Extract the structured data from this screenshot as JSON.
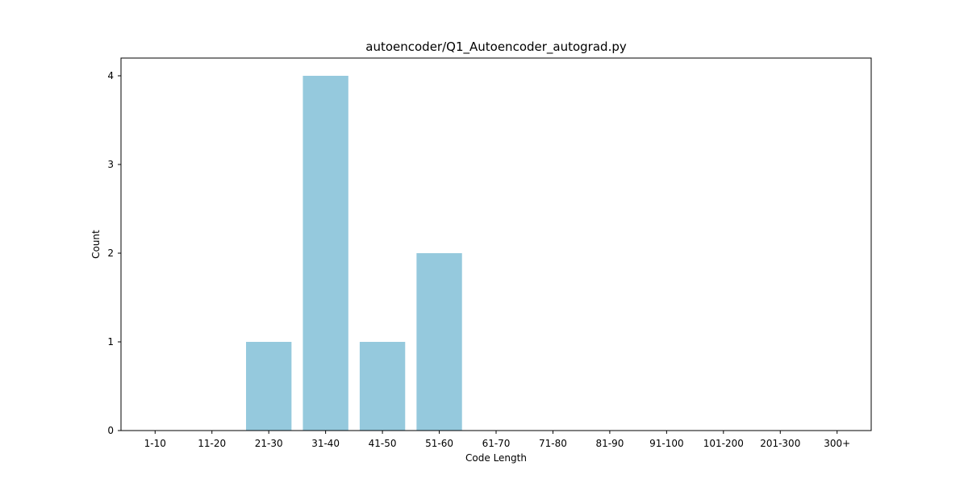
{
  "chart_data": {
    "type": "bar",
    "title": "autoencoder/Q1_Autoencoder_autograd.py",
    "xlabel": "Code Length",
    "ylabel": "Count",
    "categories": [
      "1-10",
      "11-20",
      "21-30",
      "31-40",
      "41-50",
      "51-60",
      "61-70",
      "71-80",
      "81-90",
      "91-100",
      "101-200",
      "201-300",
      "300+"
    ],
    "values": [
      0,
      0,
      1,
      4,
      1,
      2,
      0,
      0,
      0,
      0,
      0,
      0,
      0
    ],
    "ylim": [
      0,
      4.2
    ],
    "yticks": [
      0,
      1,
      2,
      3,
      4
    ],
    "grid": false,
    "bar_color": "#95c9dd"
  }
}
